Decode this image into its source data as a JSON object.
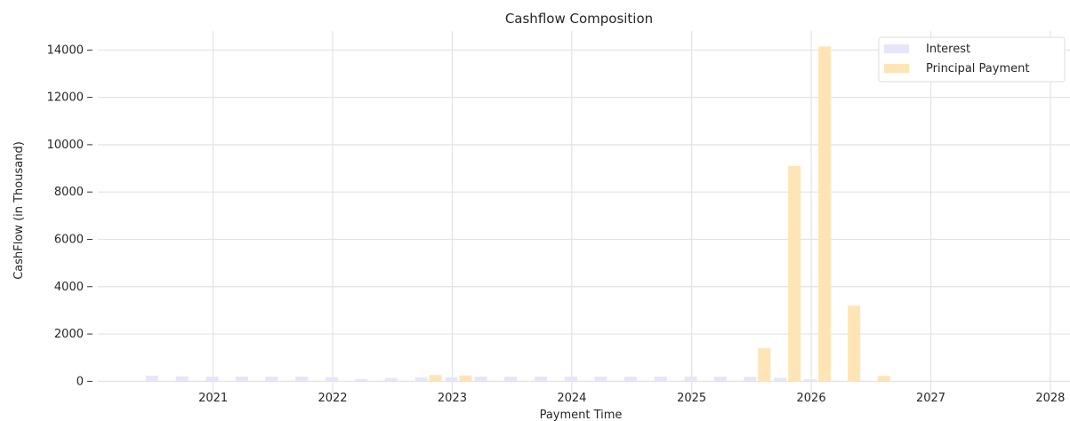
{
  "chart_data": {
    "type": "bar",
    "title": "Cashflow Composition",
    "xlabel": "Payment Time",
    "ylabel": "CashFlow (in Thousand)",
    "x_tick_labels": [
      "2021",
      "2022",
      "2023",
      "2024",
      "2025",
      "2026",
      "2027",
      "2028"
    ],
    "y_ticks": [
      0,
      2000,
      4000,
      6000,
      8000,
      10000,
      12000,
      14000
    ],
    "ylim": [
      -700,
      14800
    ],
    "xlim": [
      "2020-01-15",
      "2028-03-01"
    ],
    "grid": true,
    "legend_position": "top-right",
    "series": [
      {
        "name": "Interest",
        "color": "#e6e6fa",
        "points": [
          {
            "x": "2020-07-20",
            "y": 240
          },
          {
            "x": "2020-10-20",
            "y": 210
          },
          {
            "x": "2021-01-20",
            "y": 200
          },
          {
            "x": "2021-04-20",
            "y": 200
          },
          {
            "x": "2021-07-20",
            "y": 200
          },
          {
            "x": "2021-10-20",
            "y": 200
          },
          {
            "x": "2022-01-20",
            "y": 180
          },
          {
            "x": "2022-04-20",
            "y": 100
          },
          {
            "x": "2022-07-20",
            "y": 140
          },
          {
            "x": "2022-10-20",
            "y": 170
          },
          {
            "x": "2023-01-20",
            "y": 170
          },
          {
            "x": "2023-04-20",
            "y": 200
          },
          {
            "x": "2023-07-20",
            "y": 200
          },
          {
            "x": "2023-10-20",
            "y": 200
          },
          {
            "x": "2024-01-20",
            "y": 200
          },
          {
            "x": "2024-04-20",
            "y": 200
          },
          {
            "x": "2024-07-20",
            "y": 200
          },
          {
            "x": "2024-10-20",
            "y": 200
          },
          {
            "x": "2025-01-20",
            "y": 200
          },
          {
            "x": "2025-04-20",
            "y": 200
          },
          {
            "x": "2025-07-20",
            "y": 190
          },
          {
            "x": "2025-10-20",
            "y": 150
          },
          {
            "x": "2026-01-20",
            "y": 90
          },
          {
            "x": "2026-04-20",
            "y": 30
          }
        ]
      },
      {
        "name": "Principal Payment",
        "color": "#ffe4b5",
        "points": [
          {
            "x": "2022-10-20",
            "y": 270
          },
          {
            "x": "2023-01-20",
            "y": 250
          },
          {
            "x": "2025-07-20",
            "y": 1400
          },
          {
            "x": "2025-10-20",
            "y": 9100
          },
          {
            "x": "2026-01-20",
            "y": 14150
          },
          {
            "x": "2026-04-20",
            "y": 3200
          },
          {
            "x": "2026-07-20",
            "y": 230
          }
        ]
      }
    ]
  }
}
